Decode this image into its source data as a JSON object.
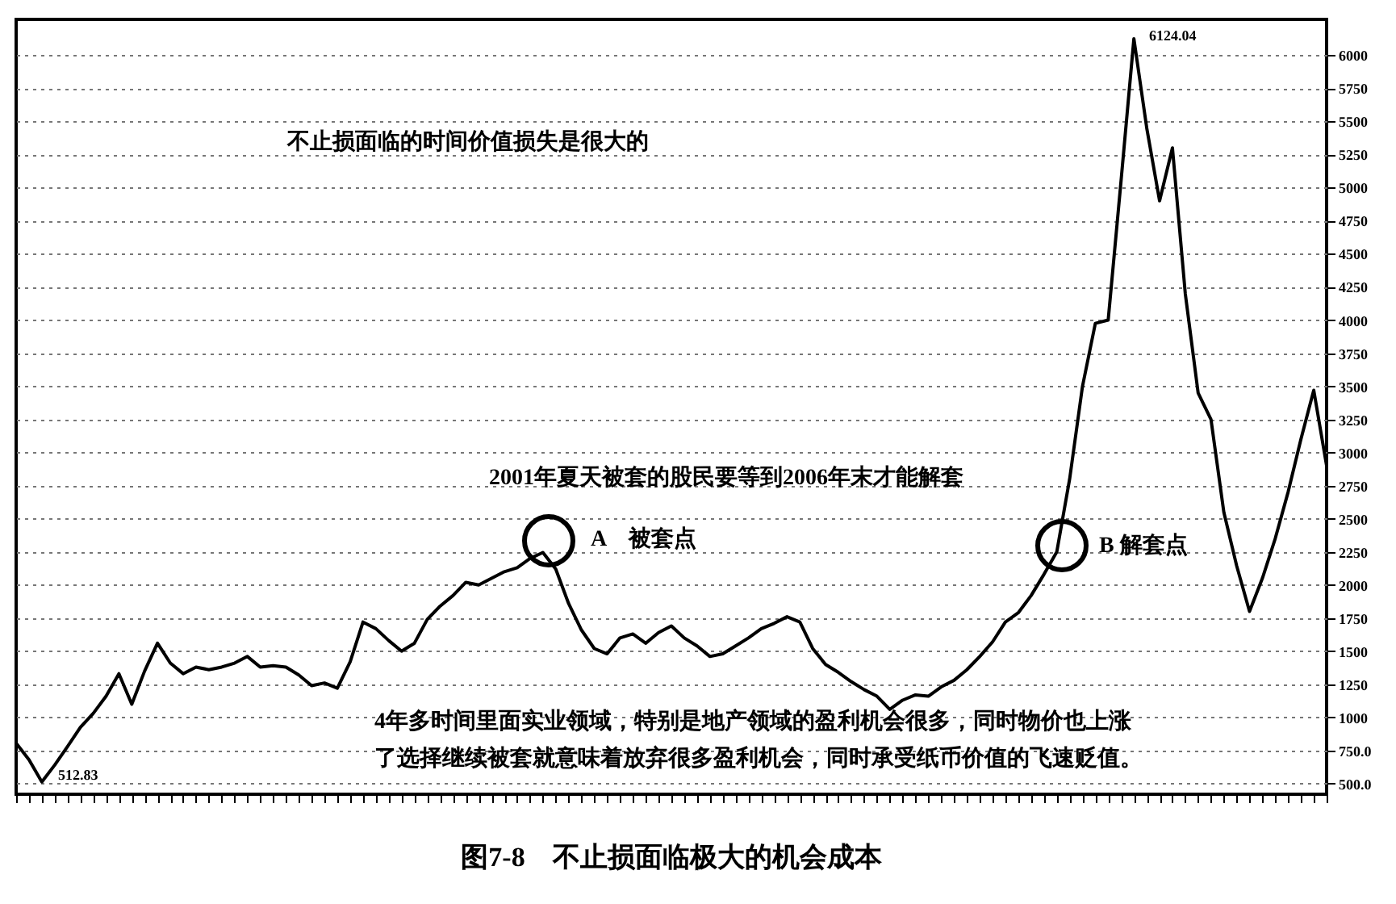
{
  "chart_data": {
    "type": "line",
    "title": "图7-8　不止损面临极大的机会成本",
    "categories": [
      null,
      null,
      null,
      null,
      null,
      null,
      null,
      null,
      null,
      null,
      null,
      null,
      null,
      null,
      null,
      null,
      null,
      null,
      null,
      null,
      null,
      null,
      null,
      null,
      null,
      null,
      null,
      null,
      null,
      null,
      null,
      null,
      null,
      null,
      null,
      null,
      null,
      null,
      null,
      null,
      null,
      null,
      null,
      null,
      null,
      null,
      null,
      null,
      null,
      null,
      null,
      null,
      null,
      null,
      null,
      null,
      null,
      null,
      null,
      null,
      null,
      null,
      null,
      null,
      null,
      null,
      null,
      null,
      null,
      null,
      null,
      null,
      null,
      null,
      null,
      null,
      null,
      null,
      null,
      null,
      null,
      null,
      null,
      null,
      null,
      null,
      null,
      null,
      null,
      null,
      null,
      null,
      null,
      null,
      null,
      null,
      null,
      null,
      null,
      null,
      null,
      null,
      null
    ],
    "series": [
      {
        "color": "#000000",
        "values": [
          805,
          680,
          512.83,
          640,
          780,
          925,
          1030,
          1160,
          1330,
          1100,
          1350,
          1560,
          1410,
          1330,
          1380,
          1360,
          1380,
          1410,
          1460,
          1380,
          1390,
          1380,
          1320,
          1240,
          1260,
          1220,
          1420,
          1720,
          1670,
          1580,
          1500,
          1560,
          1740,
          1840,
          1920,
          2020,
          2000,
          2050,
          2100,
          2130,
          2200,
          2245,
          2120,
          1860,
          1660,
          1520,
          1480,
          1600,
          1630,
          1560,
          1640,
          1690,
          1600,
          1540,
          1460,
          1480,
          1540,
          1600,
          1670,
          1710,
          1760,
          1720,
          1520,
          1400,
          1340,
          1270,
          1210,
          1160,
          1060,
          1130,
          1170,
          1160,
          1230,
          1280,
          1360,
          1460,
          1570,
          1720,
          1790,
          1920,
          2080,
          2250,
          2800,
          3500,
          3975,
          4000,
          5050,
          6124.04,
          5450,
          4900,
          5300,
          4200,
          3450,
          3250,
          2550,
          2145,
          1800,
          2050,
          2350,
          2700,
          3100,
          3470,
          2900
        ]
      }
    ],
    "ylim": [
      420,
      6270
    ],
    "yticks": [
      {
        "value": 500,
        "label": "500.0"
      },
      {
        "value": 750,
        "label": "750.0"
      },
      1000,
      1250,
      1500,
      1750,
      2000,
      2250,
      2500,
      2750,
      3000,
      3250,
      3500,
      3750,
      4000,
      4250,
      4500,
      4750,
      5000,
      5250,
      5500,
      5750,
      6000
    ],
    "grid": "y",
    "tick_labels": "y",
    "line_style": "solid",
    "annotations": [
      "不止损面临的时间价值损失是很大的",
      "2001年夏天被套的股民要等到2006年末才能解套",
      "A　被套点",
      "B 解套点",
      "4年多时间里面实业领域，特别是地产领域的盈利机会很多，同时物价也上涨",
      "了选择继续被套就意味着放弃很多盈利机会，同时承受纸币价值的飞速贬值。",
      "512.83",
      "6124.04"
    ]
  }
}
